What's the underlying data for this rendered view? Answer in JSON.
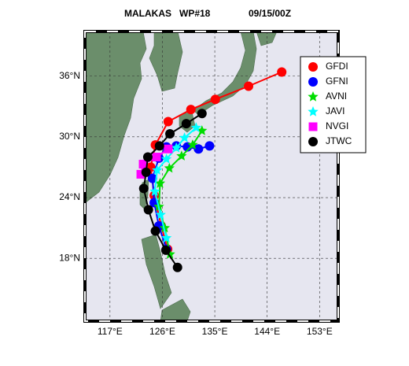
{
  "chart_data": {
    "type": "track",
    "title": "MALAKAS   WP#18",
    "subtitle": "09/15/00Z",
    "xlim": [
      112.7,
      156.2
    ],
    "ylim": [
      11.8,
      40.4
    ],
    "xticks": [
      {
        "value": 117,
        "label": "117°E"
      },
      {
        "value": 126,
        "label": "126°E"
      },
      {
        "value": 135,
        "label": "135°E"
      },
      {
        "value": 144,
        "label": "144°E"
      },
      {
        "value": 153,
        "label": "153°E"
      }
    ],
    "yticks": [
      {
        "value": 18,
        "label": "18°N"
      },
      {
        "value": 24,
        "label": "24°N"
      },
      {
        "value": 30,
        "label": "30°N"
      },
      {
        "value": 36,
        "label": "36°N"
      }
    ],
    "grid": true,
    "legend": "upper right",
    "series": [
      {
        "name": "GFDI",
        "color": "#ff0000",
        "marker": "circle",
        "x": [
          126.9,
          125.8,
          124.6,
          124.0,
          124.8,
          127.0,
          130.9,
          135.1,
          140.8,
          146.5
        ],
        "values": [
          18.9,
          21.2,
          24.2,
          27.0,
          29.2,
          31.5,
          32.7,
          33.7,
          35.0,
          36.4
        ]
      },
      {
        "name": "GFNI",
        "color": "#0000ff",
        "marker": "circle",
        "x": [
          126.7,
          125.4,
          124.6,
          124.3,
          125.4,
          126.7,
          128.4,
          130.3,
          132.2,
          134.1
        ],
        "values": [
          18.9,
          21.2,
          23.5,
          25.9,
          27.9,
          29.0,
          29.1,
          29.0,
          28.8,
          29.1
        ]
      },
      {
        "name": "AVNI",
        "color": "#00dd00",
        "marker": "star",
        "x": [
          127.3,
          126.4,
          125.4,
          125.6,
          127.2,
          129.3,
          131.2,
          132.8
        ],
        "values": [
          18.4,
          21.0,
          23.1,
          25.4,
          26.9,
          28.1,
          29.2,
          30.6
        ]
      },
      {
        "name": "JAVI",
        "color": "#00ffff",
        "marker": "star",
        "x": [
          126.7,
          125.7,
          124.7,
          125.1,
          126.7,
          128.4,
          129.8,
          131.8
        ],
        "values": [
          20.0,
          22.3,
          24.6,
          26.7,
          27.8,
          28.9,
          29.9,
          30.9
        ]
      },
      {
        "name": "NVGI",
        "color": "#ff00ff",
        "marker": "square",
        "x": [
          122.3,
          122.7,
          125.0,
          127.0
        ],
        "values": [
          26.3,
          27.3,
          28.0,
          28.8
        ]
      },
      {
        "name": "JTWC",
        "color": "#000000",
        "marker": "circle",
        "x": [
          128.6,
          126.6,
          124.8,
          123.6,
          122.8,
          123.2,
          123.5,
          125.5,
          127.3,
          130.1,
          132.8
        ],
        "values": [
          17.1,
          18.8,
          20.7,
          22.8,
          24.9,
          26.5,
          28.0,
          29.1,
          30.3,
          31.3,
          32.3
        ]
      }
    ]
  }
}
